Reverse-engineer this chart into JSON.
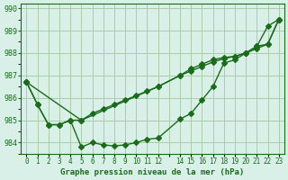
{
  "title": "Graphe pression niveau de la mer (hPa)",
  "bg_color": "#d8f0e8",
  "grid_color": "#aacca8",
  "line_color": "#1a6b1a",
  "marker_color": "#1a6b1a",
  "xlim": [
    -0.5,
    23.5
  ],
  "ylim": [
    983.5,
    990.2
  ],
  "yticks": [
    984,
    985,
    986,
    987,
    988,
    989,
    990
  ],
  "xtick_labels": [
    "0",
    "1",
    "2",
    "3",
    "4",
    "5",
    "6",
    "7",
    "8",
    "9",
    "10",
    "11",
    "12",
    "",
    "14",
    "15",
    "16",
    "17",
    "18",
    "19",
    "20",
    "21",
    "22",
    "23"
  ],
  "series1_x": [
    0,
    1,
    2,
    3,
    4,
    5,
    6,
    7,
    8,
    9,
    10,
    11,
    12,
    14,
    15,
    16,
    17,
    18,
    19,
    20,
    21,
    22,
    23
  ],
  "series1_y": [
    986.7,
    985.7,
    984.8,
    984.8,
    985.0,
    983.8,
    984.0,
    983.9,
    983.85,
    983.9,
    984.0,
    984.15,
    984.2,
    985.05,
    985.3,
    985.9,
    986.5,
    987.55,
    987.7,
    988.0,
    988.3,
    989.2,
    989.5
  ],
  "series2_x": [
    0,
    1,
    2,
    3,
    4,
    5,
    6,
    7,
    8,
    9,
    10,
    11,
    12,
    14,
    15,
    16,
    17,
    18,
    19,
    20,
    21,
    22,
    23
  ],
  "series2_y": [
    986.7,
    985.7,
    984.8,
    984.8,
    985.0,
    985.0,
    985.3,
    985.5,
    985.7,
    985.9,
    986.1,
    986.3,
    986.5,
    987.0,
    987.2,
    987.4,
    987.6,
    987.75,
    987.85,
    988.0,
    988.2,
    988.4,
    989.5
  ],
  "series3_x": [
    0,
    5,
    12,
    14,
    15,
    16,
    17,
    18,
    19,
    20,
    21,
    22,
    23
  ],
  "series3_y": [
    986.7,
    985.0,
    986.5,
    987.0,
    987.3,
    987.5,
    987.7,
    987.8,
    987.85,
    988.0,
    988.3,
    988.4,
    989.5
  ]
}
